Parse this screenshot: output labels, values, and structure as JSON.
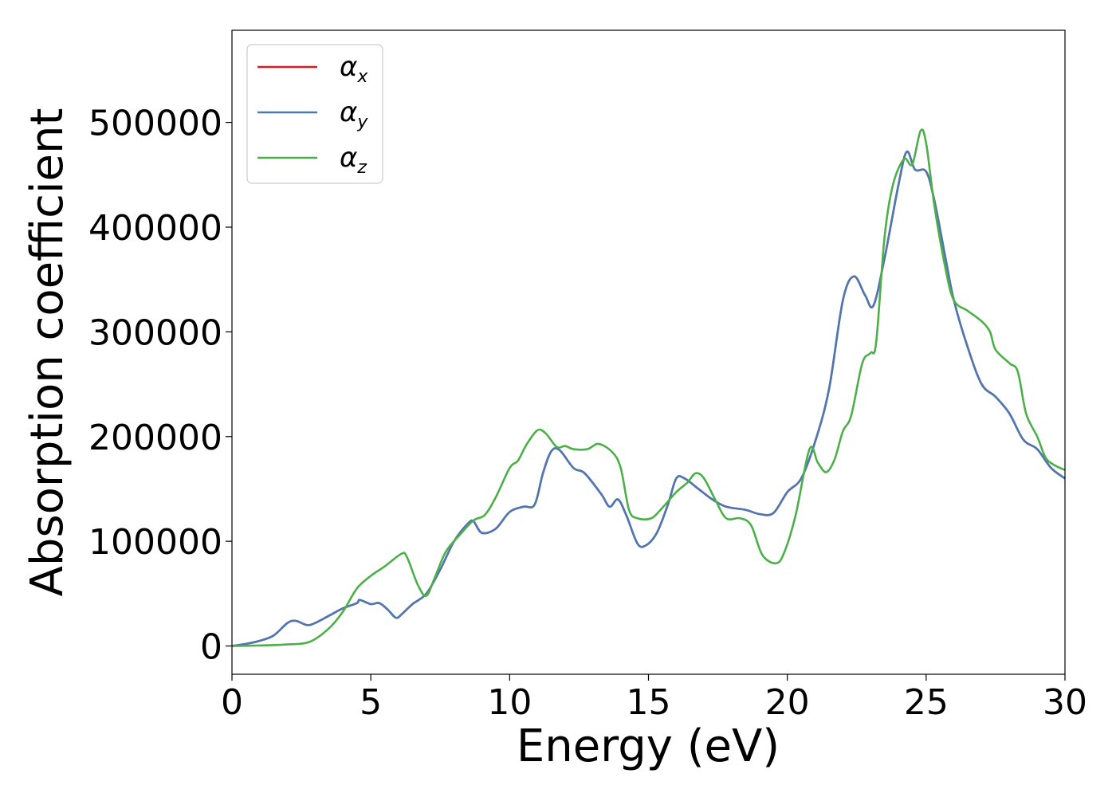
{
  "chart_data": {
    "type": "line",
    "title": "",
    "xlabel": "Energy (eV)",
    "ylabel": "Absorption coefficient",
    "xlim": [
      0,
      30
    ],
    "ylim": [
      -27000,
      588000
    ],
    "xticks": [
      0,
      5,
      10,
      15,
      20,
      25,
      30
    ],
    "yticks": [
      0,
      100000,
      200000,
      300000,
      400000,
      500000
    ],
    "grid": false,
    "legend_placement": "top-left",
    "series": [
      {
        "name": "α",
        "subscript": "x",
        "color": "#e41a1c",
        "points": [
          [
            0,
            0
          ],
          [
            0.5,
            2000
          ],
          [
            1,
            5000
          ],
          [
            1.5,
            10000
          ],
          [
            2,
            22000
          ],
          [
            2.3,
            24000
          ],
          [
            2.7,
            20000
          ],
          [
            3,
            22000
          ],
          [
            3.5,
            29000
          ],
          [
            4,
            36000
          ],
          [
            4.5,
            41000
          ],
          [
            4.6,
            44000
          ],
          [
            5,
            40000
          ],
          [
            5.3,
            41000
          ],
          [
            5.6,
            35000
          ],
          [
            5.9,
            27000
          ],
          [
            6.1,
            30000
          ],
          [
            6.5,
            40000
          ],
          [
            7,
            50000
          ],
          [
            7.5,
            73000
          ],
          [
            8,
            100000
          ],
          [
            8.5,
            117000
          ],
          [
            8.7,
            119000
          ],
          [
            9,
            108000
          ],
          [
            9.5,
            112000
          ],
          [
            10,
            128000
          ],
          [
            10.5,
            133000
          ],
          [
            10.9,
            135000
          ],
          [
            11.2,
            165000
          ],
          [
            11.5,
            186000
          ],
          [
            11.8,
            187000
          ],
          [
            12.3,
            170000
          ],
          [
            12.7,
            165000
          ],
          [
            13.3,
            145000
          ],
          [
            13.6,
            133000
          ],
          [
            13.9,
            140000
          ],
          [
            14.2,
            125000
          ],
          [
            14.6,
            98000
          ],
          [
            14.9,
            96000
          ],
          [
            15.3,
            108000
          ],
          [
            15.7,
            135000
          ],
          [
            16,
            160000
          ],
          [
            16.3,
            160000
          ],
          [
            16.8,
            150000
          ],
          [
            17.3,
            140000
          ],
          [
            17.8,
            133000
          ],
          [
            18.5,
            130000
          ],
          [
            19,
            126000
          ],
          [
            19.5,
            127000
          ],
          [
            20,
            147000
          ],
          [
            20.5,
            160000
          ],
          [
            21,
            195000
          ],
          [
            21.5,
            245000
          ],
          [
            22,
            330000
          ],
          [
            22.4,
            353000
          ],
          [
            22.8,
            335000
          ],
          [
            23.1,
            325000
          ],
          [
            23.5,
            370000
          ],
          [
            24,
            440000
          ],
          [
            24.3,
            472000
          ],
          [
            24.6,
            455000
          ],
          [
            25,
            453000
          ],
          [
            25.3,
            425000
          ],
          [
            25.7,
            370000
          ],
          [
            26,
            330000
          ],
          [
            26.5,
            285000
          ],
          [
            27,
            250000
          ],
          [
            27.5,
            238000
          ],
          [
            28,
            222000
          ],
          [
            28.5,
            197000
          ],
          [
            29,
            188000
          ],
          [
            29.5,
            170000
          ],
          [
            30,
            160000
          ]
        ]
      },
      {
        "name": "α",
        "subscript": "y",
        "color": "#4a79b4",
        "points": [
          [
            0,
            0
          ],
          [
            0.5,
            2000
          ],
          [
            1,
            5000
          ],
          [
            1.5,
            10000
          ],
          [
            2,
            22000
          ],
          [
            2.3,
            24000
          ],
          [
            2.7,
            20000
          ],
          [
            3,
            22000
          ],
          [
            3.5,
            29000
          ],
          [
            4,
            36000
          ],
          [
            4.5,
            41000
          ],
          [
            4.6,
            44000
          ],
          [
            5,
            40000
          ],
          [
            5.3,
            41000
          ],
          [
            5.6,
            35000
          ],
          [
            5.9,
            27000
          ],
          [
            6.1,
            30000
          ],
          [
            6.5,
            40000
          ],
          [
            7,
            50000
          ],
          [
            7.5,
            73000
          ],
          [
            8,
            100000
          ],
          [
            8.5,
            117000
          ],
          [
            8.7,
            119000
          ],
          [
            9,
            108000
          ],
          [
            9.5,
            112000
          ],
          [
            10,
            128000
          ],
          [
            10.5,
            133000
          ],
          [
            10.9,
            135000
          ],
          [
            11.2,
            165000
          ],
          [
            11.5,
            186000
          ],
          [
            11.8,
            187000
          ],
          [
            12.3,
            170000
          ],
          [
            12.7,
            165000
          ],
          [
            13.3,
            145000
          ],
          [
            13.6,
            133000
          ],
          [
            13.9,
            140000
          ],
          [
            14.2,
            125000
          ],
          [
            14.6,
            98000
          ],
          [
            14.9,
            96000
          ],
          [
            15.3,
            108000
          ],
          [
            15.7,
            135000
          ],
          [
            16,
            160000
          ],
          [
            16.3,
            160000
          ],
          [
            16.8,
            150000
          ],
          [
            17.3,
            140000
          ],
          [
            17.8,
            133000
          ],
          [
            18.5,
            130000
          ],
          [
            19,
            126000
          ],
          [
            19.5,
            127000
          ],
          [
            20,
            147000
          ],
          [
            20.5,
            160000
          ],
          [
            21,
            195000
          ],
          [
            21.5,
            245000
          ],
          [
            22,
            330000
          ],
          [
            22.4,
            353000
          ],
          [
            22.8,
            335000
          ],
          [
            23.1,
            325000
          ],
          [
            23.5,
            370000
          ],
          [
            24,
            440000
          ],
          [
            24.3,
            472000
          ],
          [
            24.6,
            455000
          ],
          [
            25,
            453000
          ],
          [
            25.3,
            425000
          ],
          [
            25.7,
            370000
          ],
          [
            26,
            330000
          ],
          [
            26.5,
            285000
          ],
          [
            27,
            250000
          ],
          [
            27.5,
            238000
          ],
          [
            28,
            222000
          ],
          [
            28.5,
            197000
          ],
          [
            29,
            188000
          ],
          [
            29.5,
            170000
          ],
          [
            30,
            160000
          ]
        ]
      },
      {
        "name": "α",
        "subscript": "z",
        "color": "#4daf4a",
        "points": [
          [
            0,
            0
          ],
          [
            1,
            500
          ],
          [
            2,
            1500
          ],
          [
            2.8,
            4000
          ],
          [
            3.5,
            17000
          ],
          [
            4,
            33000
          ],
          [
            4.5,
            55000
          ],
          [
            5,
            67000
          ],
          [
            5.5,
            76000
          ],
          [
            6.1,
            88000
          ],
          [
            6.3,
            85000
          ],
          [
            6.7,
            58000
          ],
          [
            7,
            48000
          ],
          [
            7.3,
            65000
          ],
          [
            7.7,
            90000
          ],
          [
            8.2,
            106000
          ],
          [
            8.7,
            120000
          ],
          [
            9.1,
            125000
          ],
          [
            9.5,
            142000
          ],
          [
            10,
            170000
          ],
          [
            10.3,
            177000
          ],
          [
            10.6,
            192000
          ],
          [
            11,
            206000
          ],
          [
            11.3,
            203000
          ],
          [
            11.7,
            190000
          ],
          [
            12,
            191000
          ],
          [
            12.3,
            188000
          ],
          [
            12.8,
            188000
          ],
          [
            13.2,
            193000
          ],
          [
            13.7,
            185000
          ],
          [
            14,
            170000
          ],
          [
            14.3,
            130000
          ],
          [
            14.6,
            122000
          ],
          [
            15.1,
            122000
          ],
          [
            15.5,
            132000
          ],
          [
            16,
            147000
          ],
          [
            16.4,
            156000
          ],
          [
            16.7,
            165000
          ],
          [
            17,
            160000
          ],
          [
            17.4,
            140000
          ],
          [
            17.8,
            122000
          ],
          [
            18.3,
            122000
          ],
          [
            18.7,
            115000
          ],
          [
            19.1,
            87000
          ],
          [
            19.6,
            79000
          ],
          [
            19.9,
            90000
          ],
          [
            20.3,
            125000
          ],
          [
            20.8,
            188000
          ],
          [
            21.1,
            175000
          ],
          [
            21.4,
            166000
          ],
          [
            21.7,
            178000
          ],
          [
            22,
            205000
          ],
          [
            22.3,
            220000
          ],
          [
            22.7,
            270000
          ],
          [
            23,
            280000
          ],
          [
            23.2,
            290000
          ],
          [
            23.5,
            390000
          ],
          [
            23.8,
            440000
          ],
          [
            24.2,
            465000
          ],
          [
            24.5,
            460000
          ],
          [
            24.8,
            492000
          ],
          [
            25,
            480000
          ],
          [
            25.3,
            420000
          ],
          [
            25.7,
            360000
          ],
          [
            26,
            330000
          ],
          [
            26.5,
            320000
          ],
          [
            27,
            310000
          ],
          [
            27.3,
            300000
          ],
          [
            27.5,
            283000
          ],
          [
            28,
            270000
          ],
          [
            28.3,
            262000
          ],
          [
            28.6,
            222000
          ],
          [
            29,
            200000
          ],
          [
            29.3,
            180000
          ],
          [
            29.6,
            173000
          ],
          [
            30,
            168000
          ]
        ]
      }
    ]
  }
}
